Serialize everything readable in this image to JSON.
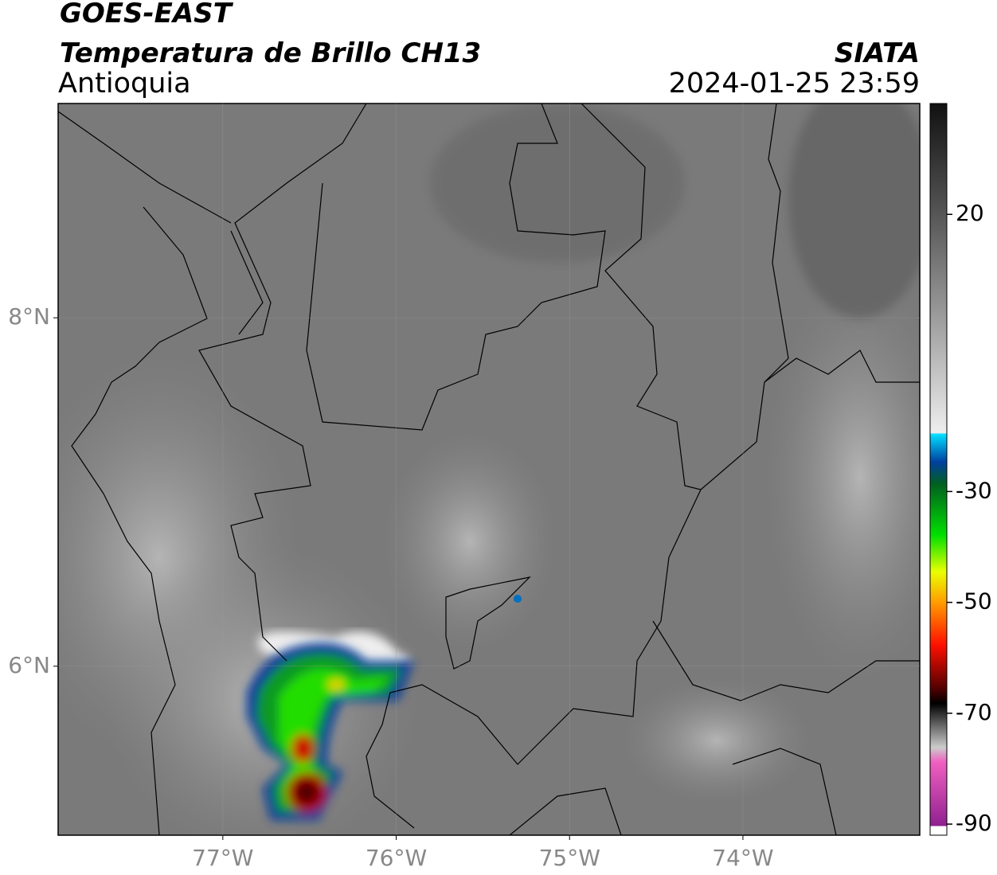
{
  "header": {
    "title": "GOES-EAST",
    "subtitle": "Temperatura de Brillo CH13",
    "region": "Antioquia",
    "agency": "SIATA",
    "datetime": "2024-01-25 23:59"
  },
  "map": {
    "xlim": [
      -77.95,
      -72.98
    ],
    "ylim": [
      5.03,
      9.23
    ],
    "xticks": [
      {
        "value": -77,
        "label": "77°W"
      },
      {
        "value": -76,
        "label": "76°W"
      },
      {
        "value": -75,
        "label": "75°W"
      },
      {
        "value": -74,
        "label": "74°W"
      }
    ],
    "yticks": [
      {
        "value": 8,
        "label": "8°N"
      },
      {
        "value": 6,
        "label": "6°N"
      }
    ],
    "grid": true
  },
  "colorbar": {
    "clim": [
      -92,
      40
    ],
    "ticks": [
      20,
      -30,
      -50,
      -70,
      -90
    ]
  }
}
